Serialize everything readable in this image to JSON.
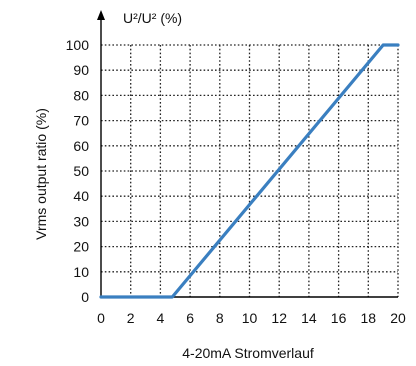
{
  "chart_data": {
    "type": "line",
    "top_label": {
      "text": "U²/U² (%)"
    },
    "xlabel": "4-20mA  Stromverlauf",
    "ylabel": "Vrms  output  ratio  (%)",
    "xlim": [
      0,
      20
    ],
    "ylim": [
      0,
      100
    ],
    "x_ticks": [
      0,
      2,
      4,
      6,
      8,
      10,
      12,
      14,
      16,
      18,
      20
    ],
    "y_ticks": [
      0,
      10,
      20,
      30,
      40,
      50,
      60,
      70,
      80,
      90,
      100
    ],
    "grid": true,
    "series": [
      {
        "color": "#3a7fc0",
        "points": [
          [
            0,
            0
          ],
          [
            4.8,
            0
          ],
          [
            19,
            100
          ],
          [
            20,
            100
          ]
        ]
      }
    ]
  }
}
